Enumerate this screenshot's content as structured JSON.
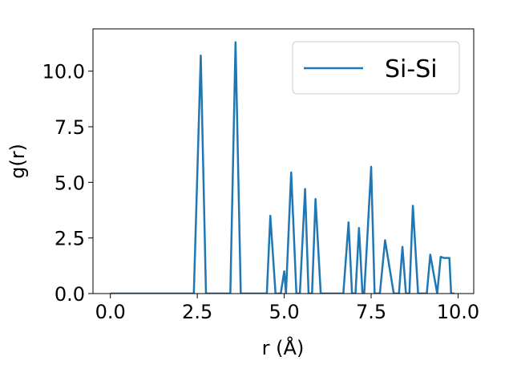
{
  "chart_data": {
    "type": "line",
    "title": "",
    "xlabel": "r (Å)",
    "ylabel": "g(r)",
    "xlim": [
      -0.5,
      10.45
    ],
    "ylim": [
      0,
      11.9
    ],
    "xticks": [
      0.0,
      2.5,
      5.0,
      7.5,
      10.0
    ],
    "xtick_labels": [
      "0.0",
      "2.5",
      "5.0",
      "7.5",
      "10.0"
    ],
    "yticks": [
      0.0,
      2.5,
      5.0,
      7.5,
      10.0
    ],
    "ytick_labels": [
      "0.0",
      "2.5",
      "5.0",
      "7.5",
      "10.0"
    ],
    "grid": false,
    "legend": {
      "position": "top-right"
    },
    "series": [
      {
        "name": "Si-Si",
        "color": "#1f77b4",
        "x": [
          0.0,
          2.4,
          2.6,
          2.75,
          3.45,
          3.6,
          3.75,
          4.5,
          4.6,
          4.75,
          4.9,
          5.0,
          5.05,
          5.2,
          5.35,
          5.45,
          5.6,
          5.7,
          5.8,
          5.9,
          6.05,
          6.7,
          6.85,
          6.95,
          7.05,
          7.15,
          7.25,
          7.3,
          7.4,
          7.5,
          7.6,
          7.75,
          7.9,
          8.15,
          8.3,
          8.4,
          8.5,
          8.6,
          8.7,
          8.85,
          9.1,
          9.2,
          9.4,
          9.5,
          9.6,
          9.75,
          9.8,
          9.9
        ],
        "y": [
          0.0,
          0.0,
          10.7,
          0.0,
          0.0,
          11.3,
          0.0,
          0.0,
          3.5,
          0.0,
          0.0,
          1.0,
          0.0,
          5.45,
          0.0,
          0.0,
          4.7,
          0.0,
          0.0,
          4.25,
          0.0,
          0.0,
          3.2,
          0.0,
          0.0,
          2.95,
          0.0,
          0.0,
          2.8,
          5.7,
          0.0,
          0.0,
          2.4,
          0.0,
          0.0,
          2.1,
          0.0,
          0.0,
          3.95,
          0.0,
          0.0,
          1.75,
          0.0,
          1.65,
          1.6,
          1.6,
          0.0,
          0.0
        ]
      }
    ]
  }
}
